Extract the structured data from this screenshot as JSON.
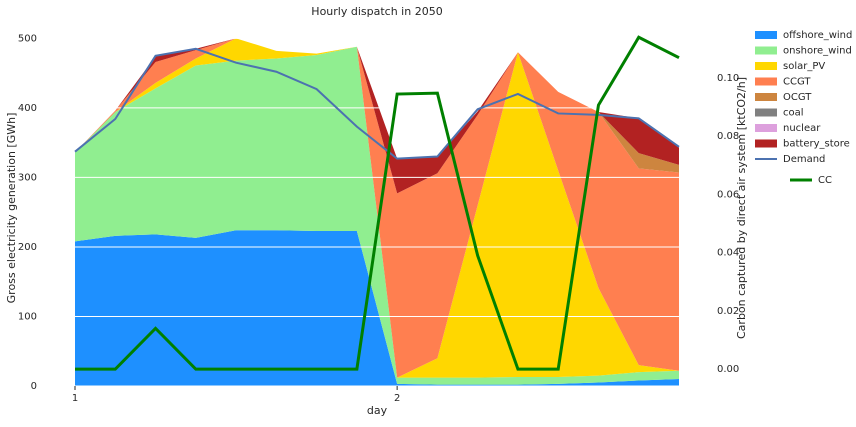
{
  "chart_data": {
    "type": "stacked_area",
    "title": "Hourly dispatch in 2050",
    "xlabel": "day",
    "ylabel": "Gross electricity generation [GWh]",
    "y2label": "Carbon captured by direct air system [ktCO2/h]",
    "x": [
      1,
      1.125,
      1.25,
      1.375,
      1.5,
      1.625,
      1.75,
      1.875,
      2,
      2.125,
      2.25,
      2.375,
      2.5,
      2.625,
      2.75,
      2.875
    ],
    "xlim": [
      1,
      2.875
    ],
    "xticks": [
      1,
      2
    ],
    "ylim": [
      0,
      512
    ],
    "yticks": [
      0,
      100,
      200,
      300,
      400,
      500
    ],
    "y2lim": [
      -0.0058,
      0.1165
    ],
    "y2ticks": [
      {
        "value": 0,
        "label": "0.00"
      },
      {
        "value": 0.02,
        "label": "0.02"
      },
      {
        "value": 0.04,
        "label": "0.04"
      },
      {
        "value": 0.06,
        "label": "0.06"
      },
      {
        "value": 0.08,
        "label": "0.08"
      },
      {
        "value": 0.1,
        "label": "0.10"
      }
    ],
    "grid": true,
    "series": [
      {
        "name": "offshore_wind",
        "color": "#1e90ff",
        "values": [
          208,
          216,
          218,
          213,
          224,
          224,
          223,
          223,
          3,
          2,
          2,
          2,
          3,
          5,
          8,
          10
        ]
      },
      {
        "name": "onshore_wind",
        "color": "#90ee90",
        "values": [
          128,
          178,
          210,
          248,
          244,
          247,
          253,
          265,
          9,
          10,
          10,
          11,
          10,
          10,
          12,
          12
        ]
      },
      {
        "name": "solar_PV",
        "color": "#ffd700",
        "values": [
          0,
          0,
          8,
          10,
          32,
          11,
          2,
          0,
          0,
          28,
          248,
          467,
          297,
          126,
          10,
          0
        ]
      },
      {
        "name": "CCGT",
        "color": "#ff7f50",
        "values": [
          0,
          2,
          30,
          12,
          0,
          0,
          0,
          0,
          265,
          266,
          130,
          0,
          113,
          253,
          283,
          285
        ]
      },
      {
        "name": "OCGT",
        "color": "#cd853f",
        "values": [
          0,
          0,
          0,
          0,
          0,
          0,
          0,
          0,
          0,
          0,
          0,
          0,
          0,
          0,
          22,
          11
        ]
      },
      {
        "name": "coal",
        "color": "#808080",
        "values": [
          0,
          0,
          0,
          0,
          0,
          0,
          0,
          0,
          0,
          0,
          0,
          0,
          0,
          0,
          0,
          0
        ]
      },
      {
        "name": "nuclear",
        "color": "#dda0dd",
        "values": [
          0,
          0,
          0,
          0,
          0,
          0,
          0,
          0,
          0,
          0,
          0,
          0,
          0,
          0,
          0,
          0
        ]
      },
      {
        "name": "battery_store",
        "color": "#b22222",
        "values": [
          0,
          0,
          8,
          2,
          0,
          0,
          0,
          0,
          50,
          24,
          5,
          0,
          0,
          0,
          50,
          25
        ]
      }
    ],
    "lines": [
      {
        "name": "Demand",
        "color": "#4c72b0",
        "values": [
          337,
          384,
          475,
          485,
          465,
          452,
          427,
          373,
          327,
          330,
          398,
          420,
          392,
          390,
          385,
          344
        ]
      },
      {
        "name": "CC",
        "color": "#008000",
        "axis": "y2",
        "values": [
          0,
          0,
          0.014,
          0,
          0,
          0,
          0,
          0,
          0.0945,
          0.0948,
          0.039,
          0,
          0,
          0.0907,
          0.114,
          0.107
        ]
      }
    ]
  }
}
